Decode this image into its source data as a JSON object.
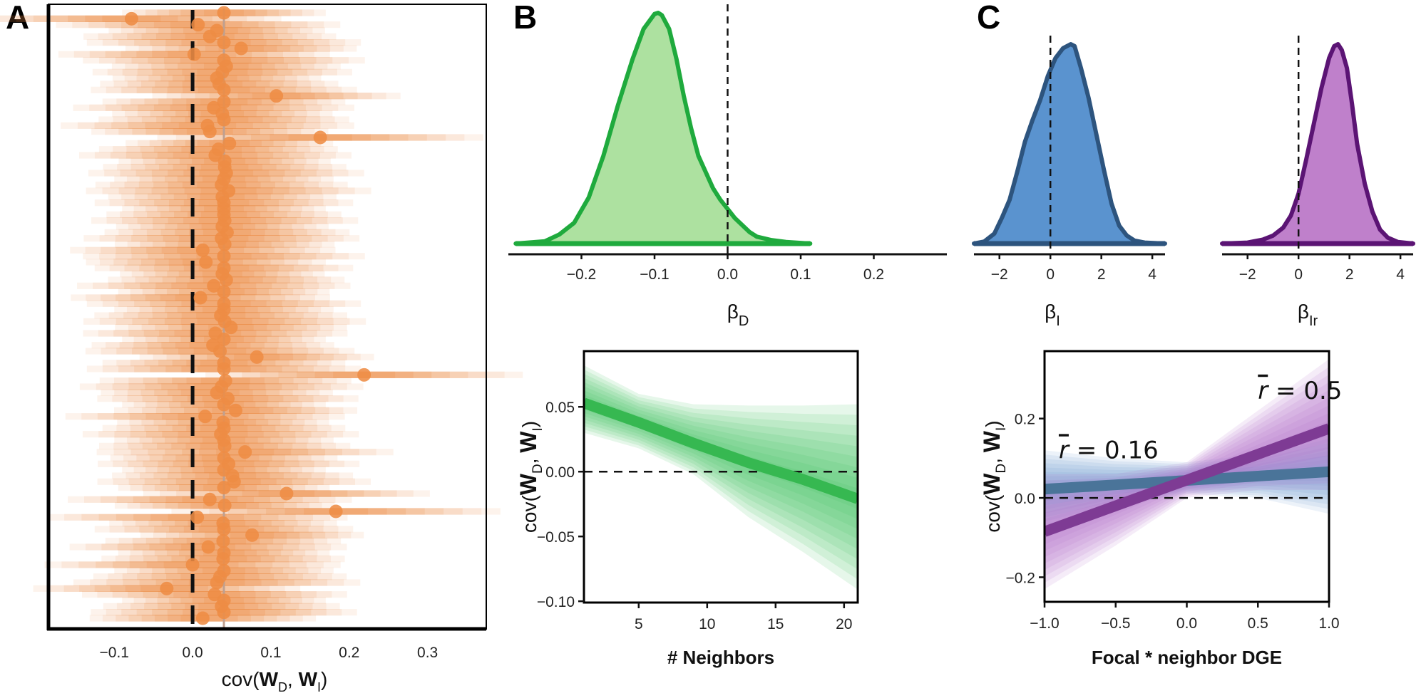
{
  "panels": {
    "A": "A",
    "B": "B",
    "C": "C"
  },
  "chart_data": [
    {
      "id": "A",
      "type": "scatter",
      "title": "",
      "xlabel": "cov(W_D, W_I)",
      "xlabel_parts": {
        "pre": "cov(",
        "w1": "W",
        "s1": "D",
        "sep": ", ",
        "w2": "W",
        "s2": "I",
        "post": ")"
      },
      "ylabel": "",
      "xlim": [
        -0.184,
        0.375
      ],
      "xticks": [
        -0.1,
        0.0,
        0.1,
        0.2,
        0.3
      ],
      "xtick_labels": [
        "−0.1",
        "0.0",
        "0.1",
        "0.2",
        "0.3"
      ],
      "reference_line": 0.0,
      "mean_line": 0.04,
      "color": "#EE8C44",
      "estimates": [
        0.04,
        -0.078,
        0.007,
        0.031,
        0.022,
        0.04,
        0.062,
        0.002,
        0.04,
        0.043,
        0.038,
        0.031,
        0.034,
        0.04,
        0.107,
        0.04,
        0.027,
        0.038,
        0.04,
        0.019,
        0.022,
        0.163,
        0.047,
        0.033,
        0.029,
        0.041,
        0.041,
        0.043,
        0.04,
        0.037,
        0.046,
        0.038,
        0.04,
        0.04,
        0.04,
        0.041,
        0.038,
        0.044,
        0.037,
        0.041,
        0.013,
        0.04,
        0.017,
        0.04,
        0.038,
        0.043,
        0.027,
        0.04,
        0.01,
        0.04,
        0.04,
        0.036,
        0.041,
        0.049,
        0.029,
        0.04,
        0.026,
        0.035,
        0.082,
        0.04,
        0.04,
        0.219,
        0.042,
        0.037,
        0.031,
        0.045,
        0.04,
        0.055,
        0.016,
        0.039,
        0.04,
        0.036,
        0.04,
        0.041,
        0.067,
        0.04,
        0.046,
        0.04,
        0.051,
        0.053,
        0.04,
        0.12,
        0.022,
        0.041,
        0.183,
        0.006,
        0.039,
        0.04,
        0.076,
        0.039,
        0.02,
        0.04,
        0.039,
        0.0,
        0.04,
        0.035,
        0.031,
        -0.033,
        0.028,
        0.04,
        0.037,
        0.04,
        0.013
      ]
    },
    {
      "id": "B-top",
      "type": "area",
      "xlabel": "β_D",
      "xlabel_parts": {
        "base": "β",
        "sub": "D"
      },
      "xlim": [
        -0.3,
        0.3
      ],
      "xticks": [
        -0.2,
        -0.1,
        0.0,
        0.1,
        0.2
      ],
      "xtick_labels": [
        "−0.2",
        "−0.1",
        "0.0",
        "0.1",
        "0.2"
      ],
      "reference_line": 0.0,
      "x": [
        -0.29,
        -0.25,
        -0.23,
        -0.21,
        -0.19,
        -0.17,
        -0.15,
        -0.13,
        -0.115,
        -0.1,
        -0.095,
        -0.09,
        -0.08,
        -0.07,
        -0.06,
        -0.05,
        -0.04,
        -0.03,
        -0.02,
        -0.01,
        0.0,
        0.01,
        0.02,
        0.03,
        0.04,
        0.06,
        0.08,
        0.113
      ],
      "density": [
        0.0,
        0.01,
        0.04,
        0.09,
        0.2,
        0.38,
        0.6,
        0.8,
        0.93,
        0.995,
        1.0,
        0.99,
        0.93,
        0.8,
        0.64,
        0.5,
        0.38,
        0.31,
        0.24,
        0.19,
        0.15,
        0.11,
        0.08,
        0.05,
        0.03,
        0.015,
        0.007,
        0.0
      ],
      "fill": "#ADE1A0",
      "stroke": "#1FAA3D"
    },
    {
      "id": "C-top-left",
      "type": "area",
      "xlabel": "β_I",
      "xlabel_parts": {
        "base": "β",
        "sub": "I"
      },
      "xlim": [
        -3.0,
        4.5
      ],
      "xticks": [
        -2,
        0,
        2,
        4
      ],
      "xtick_labels": [
        "−2",
        "0",
        "2",
        "4"
      ],
      "reference_line": 0.0,
      "x": [
        -3.0,
        -2.6,
        -2.2,
        -1.9,
        -1.6,
        -1.3,
        -1.0,
        -0.7,
        -0.4,
        -0.1,
        0.2,
        0.5,
        0.8,
        0.95,
        1.2,
        1.5,
        1.8,
        2.1,
        2.4,
        2.7,
        3.0,
        3.3,
        3.7,
        4.5
      ],
      "density": [
        0.0,
        0.01,
        0.05,
        0.13,
        0.22,
        0.36,
        0.51,
        0.62,
        0.72,
        0.84,
        0.93,
        0.98,
        1.0,
        0.99,
        0.88,
        0.73,
        0.55,
        0.37,
        0.2,
        0.09,
        0.04,
        0.015,
        0.005,
        0.0
      ],
      "fill": "#5A93CF",
      "stroke": "#2D547E"
    },
    {
      "id": "C-top-right",
      "type": "area",
      "xlabel": "β_Ir",
      "xlabel_parts": {
        "base": "β",
        "sub": "Ir"
      },
      "xlim": [
        -3.0,
        4.5
      ],
      "xticks": [
        -2,
        0,
        2,
        4
      ],
      "xtick_labels": [
        "−2",
        "0",
        "2",
        "4"
      ],
      "reference_line": 0.0,
      "x": [
        -3.0,
        -2.0,
        -1.4,
        -1.0,
        -0.6,
        -0.3,
        0.0,
        0.3,
        0.6,
        0.9,
        1.2,
        1.4,
        1.55,
        1.7,
        1.9,
        2.1,
        2.3,
        2.6,
        2.9,
        3.2,
        3.5,
        3.9,
        4.5
      ],
      "density": [
        0.0,
        0.005,
        0.02,
        0.04,
        0.08,
        0.14,
        0.25,
        0.42,
        0.6,
        0.78,
        0.93,
        0.99,
        1.0,
        0.97,
        0.88,
        0.7,
        0.5,
        0.3,
        0.16,
        0.07,
        0.03,
        0.008,
        0.0
      ],
      "fill": "#BF80CB",
      "stroke": "#5B1474"
    },
    {
      "id": "B-bottom",
      "type": "line",
      "xlabel": "# Neighbors",
      "ylabel": "cov(W_D, W_I)",
      "ylabel_parts": {
        "pre": "cov(",
        "w1": "W",
        "s1": "D",
        "sep": ", ",
        "w2": "W",
        "s2": "I",
        "post": ")"
      },
      "xlim": [
        1,
        21
      ],
      "ylim": [
        -0.101,
        0.093
      ],
      "xticks": [
        5,
        10,
        15,
        20
      ],
      "xtick_labels": [
        "5",
        "10",
        "15",
        "20"
      ],
      "yticks": [
        0.05,
        0.0,
        -0.05,
        -0.1
      ],
      "ytick_labels": [
        "0.05",
        "0.00",
        "−0.05",
        "−0.10"
      ],
      "reference_line": 0.0,
      "series": [
        {
          "name": "fit",
          "color": "#36B851",
          "band_color": "#3CC25E",
          "x": [
            1,
            5,
            9,
            13,
            17,
            21
          ],
          "y": [
            0.053,
            0.038,
            0.022,
            0.007,
            -0.006,
            -0.021
          ],
          "lower95": [
            0.03,
            0.018,
            -0.002,
            -0.035,
            -0.062,
            -0.091
          ],
          "upper95": [
            0.082,
            0.06,
            0.052,
            0.051,
            0.051,
            0.052
          ]
        }
      ]
    },
    {
      "id": "C-bottom",
      "type": "line",
      "xlabel": "Focal * neighbor DGE",
      "ylabel": "cov(W_D, W_I)",
      "ylabel_parts": {
        "pre": "cov(",
        "w1": "W",
        "s1": "D",
        "sep": ", ",
        "w2": "W",
        "s2": "I",
        "post": ")"
      },
      "xlim": [
        -1.0,
        1.0
      ],
      "ylim": [
        -0.262,
        0.37
      ],
      "xticks": [
        -1.0,
        -0.5,
        0.0,
        0.5,
        1.0
      ],
      "xtick_labels": [
        "−1.0",
        "−0.5",
        "0.0",
        "0.5",
        "1.0"
      ],
      "yticks": [
        0.2,
        0.0,
        -0.2
      ],
      "ytick_labels": [
        "0.2",
        "0.0",
        "−0.2"
      ],
      "reference_line": 0.0,
      "series": [
        {
          "name": "r̄ = 0.16",
          "annotation": {
            "bar": "r",
            "text": " = 0.16",
            "x": -0.9,
            "y": 0.1
          },
          "color": "#4A7499",
          "band_color": "#6E9BD0",
          "x": [
            -1.0,
            -0.5,
            0.0,
            0.5,
            1.0
          ],
          "y": [
            0.022,
            0.033,
            0.044,
            0.055,
            0.066
          ],
          "lower95": [
            -0.07,
            -0.02,
            0.01,
            0.0,
            -0.04
          ],
          "upper95": [
            0.12,
            0.1,
            0.09,
            0.11,
            0.16
          ]
        },
        {
          "name": "r̄ = 0.5",
          "annotation": {
            "bar": "r",
            "text": " = 0.5",
            "x": 0.5,
            "y": 0.25
          },
          "color": "#7E3B94",
          "band_color": "#B26FC7",
          "x": [
            -1.0,
            -0.5,
            0.0,
            0.5,
            1.0
          ],
          "y": [
            -0.085,
            -0.02,
            0.045,
            0.11,
            0.175
          ],
          "lower95": [
            -0.23,
            -0.12,
            0.0,
            0.02,
            0.02
          ],
          "upper95": [
            0.06,
            0.06,
            0.09,
            0.22,
            0.35
          ]
        }
      ]
    }
  ]
}
